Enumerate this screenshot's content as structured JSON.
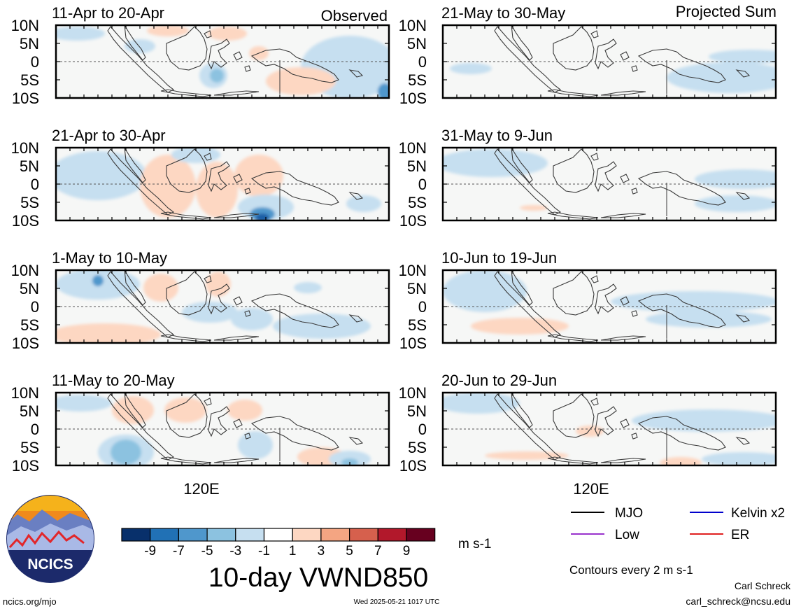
{
  "variable_title": "10-day VWND850",
  "units": "m s-1",
  "panel_group_labels": {
    "left": "Observed",
    "right": "Projected Sum"
  },
  "lat_ticks": [
    "10N",
    "5N",
    "0",
    "5S",
    "10S"
  ],
  "lon_tick": "120E",
  "panels": [
    {
      "title": "11-Apr to 20-Apr"
    },
    {
      "title": "21-Apr to 30-Apr"
    },
    {
      "title": "1-May to 10-May"
    },
    {
      "title": "11-May to 20-May"
    },
    {
      "title": "21-May to 30-May"
    },
    {
      "title": "31-May to 9-Jun"
    },
    {
      "title": "10-Jun to 19-Jun"
    },
    {
      "title": "20-Jun to 29-Jun"
    }
  ],
  "colorbar": {
    "labels": [
      "-9",
      "-7",
      "-5",
      "-3",
      "-1",
      "1",
      "3",
      "5",
      "7",
      "9"
    ],
    "colors": [
      "#08306b",
      "#2171b5",
      "#4f97cc",
      "#8cc2e0",
      "#c6dff0",
      "#ffffff",
      "#fdd7c2",
      "#f4a582",
      "#d6604d",
      "#b2182b",
      "#67001f"
    ]
  },
  "legend": {
    "items": [
      {
        "label": "MJO",
        "color": "#000000"
      },
      {
        "label": "Kelvin x2",
        "color": "#0000cc"
      },
      {
        "label": "Low",
        "color": "#9933cc"
      },
      {
        "label": "ER",
        "color": "#e02020"
      }
    ],
    "contour_note": "Contours every 2 m s-1"
  },
  "logo": {
    "text": "NCICS"
  },
  "footer": {
    "url": "ncics.org/mjo",
    "timestamp": "Wed 2025-05-21 1017 UTC",
    "author": "Carl Schreck",
    "email": "carl_schreck@ncsu.edu"
  }
}
